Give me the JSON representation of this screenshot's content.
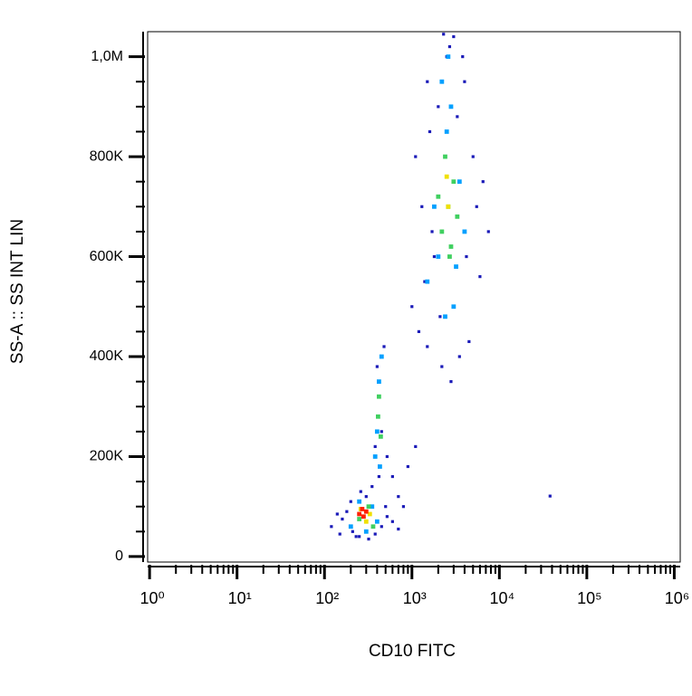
{
  "chart_data": {
    "type": "scatter",
    "x_label": "CD10 FITC",
    "y_label": "SS-A :: SS INT LIN",
    "xscale": "log",
    "xlim": [
      0.95,
      1170000
    ],
    "ylim": [
      -11000,
      1050000
    ],
    "xticks": [
      {
        "value": 1,
        "label": "10⁰"
      },
      {
        "value": 10,
        "label": "10¹"
      },
      {
        "value": 100,
        "label": "10²"
      },
      {
        "value": 1000,
        "label": "10³"
      },
      {
        "value": 10000,
        "label": "10⁴"
      },
      {
        "value": 100000,
        "label": "10⁵"
      },
      {
        "value": 1000000,
        "label": "10⁶"
      }
    ],
    "xminorticks": [
      2,
      3,
      4,
      5,
      6,
      7,
      8,
      9,
      20,
      30,
      40,
      50,
      60,
      70,
      80,
      90,
      200,
      300,
      400,
      500,
      600,
      700,
      800,
      900,
      2000,
      3000,
      4000,
      5000,
      6000,
      7000,
      8000,
      9000,
      20000,
      30000,
      40000,
      50000,
      60000,
      70000,
      80000,
      90000,
      200000,
      300000,
      400000,
      500000,
      600000,
      700000,
      800000,
      900000
    ],
    "yticks": [
      0,
      {
        "value": 200000,
        "label": "200K"
      },
      {
        "value": 400000,
        "label": "400K"
      },
      {
        "value": 600000,
        "label": "600K"
      },
      {
        "value": 800000,
        "label": "800K"
      },
      {
        "value": 1000000,
        "label": "1,0M"
      }
    ],
    "yminorticks": [
      50000,
      100000,
      150000,
      250000,
      300000,
      350000,
      450000,
      500000,
      550000,
      650000,
      700000,
      750000,
      850000,
      900000,
      950000
    ],
    "series": [
      {
        "color": "#1a1ab8",
        "x": [
          120,
          150,
          180,
          200,
          230,
          260,
          320,
          380,
          450,
          520,
          600,
          700,
          160,
          210,
          300,
          500,
          140,
          250,
          350,
          420,
          380,
          450,
          400,
          480,
          520,
          600,
          700,
          900,
          1100,
          800,
          1000,
          1200,
          1500,
          1800,
          2200,
          2800,
          3500,
          4500,
          6000,
          7500,
          1300,
          1600,
          2000,
          2500,
          3000,
          4000,
          5000,
          6500,
          1400,
          1700,
          2100,
          2700,
          3300,
          4200,
          5500,
          1100,
          1500,
          2300,
          3800,
          38000
        ],
        "values": [
          60000,
          45000,
          90000,
          110000,
          40000,
          130000,
          35000,
          45000,
          60000,
          80000,
          70000,
          55000,
          75000,
          50000,
          120000,
          100000,
          85000,
          40000,
          140000,
          160000,
          220000,
          250000,
          380000,
          420000,
          200000,
          160000,
          120000,
          180000,
          220000,
          100000,
          500000,
          450000,
          420000,
          600000,
          380000,
          350000,
          400000,
          430000,
          560000,
          650000,
          700000,
          850000,
          900000,
          1000000,
          1040000,
          950000,
          800000,
          750000,
          550000,
          650000,
          480000,
          1020000,
          880000,
          600000,
          700000,
          800000,
          950000,
          1045000,
          1000000,
          121000
        ]
      },
      {
        "color": "#00a0ff",
        "x": [
          200,
          250,
          300,
          350,
          400,
          380,
          420,
          450,
          400,
          430,
          1500,
          2000,
          2500,
          3000,
          3500,
          1800,
          2200,
          2800,
          4000,
          2600,
          3200,
          2400
        ],
        "values": [
          60000,
          110000,
          50000,
          100000,
          70000,
          200000,
          350000,
          400000,
          250000,
          180000,
          550000,
          600000,
          850000,
          500000,
          750000,
          700000,
          950000,
          900000,
          650000,
          1000000,
          580000,
          480000
        ]
      },
      {
        "color": "#40d060",
        "x": [
          250,
          320,
          360,
          410,
          420,
          440,
          2200,
          2600,
          3000,
          2400,
          2800,
          3300,
          2000,
          2700
        ],
        "values": [
          75000,
          100000,
          60000,
          280000,
          320000,
          240000,
          650000,
          700000,
          750000,
          800000,
          620000,
          680000,
          720000,
          600000
        ]
      },
      {
        "color": "#f0e000",
        "x": [
          260,
          300,
          330,
          2600,
          2500
        ],
        "values": [
          95000,
          70000,
          85000,
          700000,
          760000
        ]
      },
      {
        "color": "#ff2000",
        "x": [
          250,
          280,
          300,
          270
        ],
        "values": [
          85000,
          80000,
          90000,
          95000
        ]
      }
    ]
  }
}
